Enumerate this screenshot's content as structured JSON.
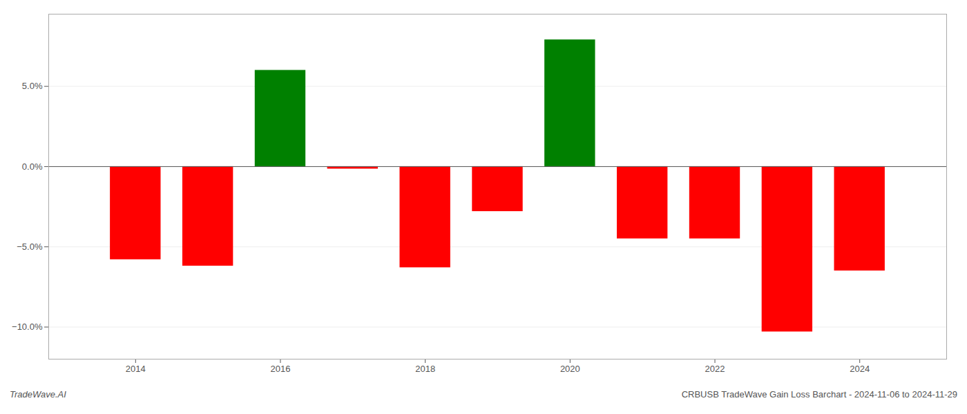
{
  "chart_data": {
    "type": "bar",
    "x": [
      2014,
      2015,
      2016,
      2017,
      2018,
      2019,
      2020,
      2021,
      2022,
      2023,
      2024
    ],
    "values": [
      -5.8,
      -6.2,
      6.0,
      -0.15,
      -6.3,
      -2.8,
      7.9,
      -4.5,
      -4.5,
      -10.3,
      -6.5
    ],
    "colors": [
      "#ff0000",
      "#ff0000",
      "#008000",
      "#ff0000",
      "#ff0000",
      "#ff0000",
      "#008000",
      "#ff0000",
      "#ff0000",
      "#ff0000",
      "#ff0000"
    ],
    "xlim": [
      2012.8,
      2025.2
    ],
    "xticks": [
      2014,
      2016,
      2018,
      2020,
      2022,
      2024
    ],
    "ylim": [
      -12.0,
      9.5
    ],
    "yticks": [
      {
        "value": -10.0,
        "label": "−10.0%"
      },
      {
        "value": -5.0,
        "label": "−5.0%"
      },
      {
        "value": 0.0,
        "label": "0.0%"
      },
      {
        "value": 5.0,
        "label": "5.0%"
      }
    ],
    "grid": true,
    "annotations": [
      "TradeWave.AI",
      "CRBUSB TradeWave Gain Loss Barchart - 2024-11-06 to 2024-11-29"
    ]
  }
}
